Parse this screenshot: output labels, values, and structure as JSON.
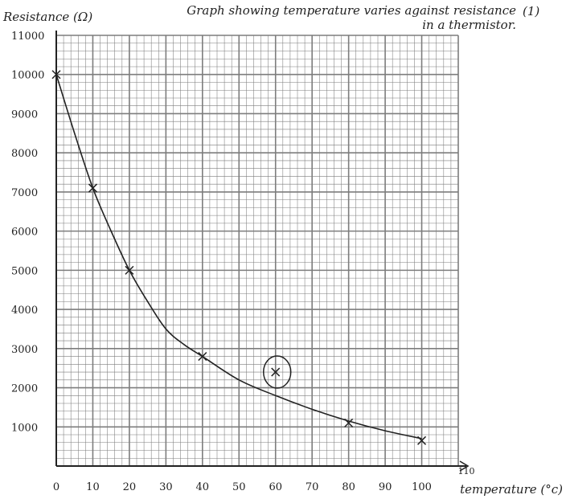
{
  "chart_data": {
    "type": "scatter",
    "title": "Graph showing temperature varies against resistance in a thermistor.",
    "title_note": "(1)",
    "xlabel": "temperature (°c)",
    "ylabel": "Resistance (Ω)",
    "x_ticks": [
      "0",
      "10",
      "20",
      "30",
      "40",
      "50",
      "60",
      "70",
      "80",
      "90",
      "100",
      "110"
    ],
    "y_ticks": [
      "1000",
      "2000",
      "3000",
      "4000",
      "5000",
      "6000",
      "7000",
      "8000",
      "9000",
      "10000",
      "11000"
    ],
    "xlim": [
      0,
      110
    ],
    "ylim": [
      0,
      11000
    ],
    "grid": true,
    "points": [
      {
        "x": 0,
        "y": 10000
      },
      {
        "x": 10,
        "y": 7100
      },
      {
        "x": 20,
        "y": 5000
      },
      {
        "x": 40,
        "y": 2800
      },
      {
        "x": 60,
        "y": 2400,
        "circled": true
      },
      {
        "x": 80,
        "y": 1100
      },
      {
        "x": 100,
        "y": 650
      }
    ],
    "curve": [
      [
        0,
        10000
      ],
      [
        5,
        8500
      ],
      [
        10,
        7100
      ],
      [
        15,
        6000
      ],
      [
        20,
        5000
      ],
      [
        25,
        4200
      ],
      [
        30,
        3500
      ],
      [
        35,
        3100
      ],
      [
        40,
        2800
      ],
      [
        50,
        2200
      ],
      [
        60,
        1800
      ],
      [
        70,
        1450
      ],
      [
        80,
        1150
      ],
      [
        90,
        900
      ],
      [
        100,
        700
      ]
    ],
    "colors": {
      "grid": "#7d7d7d",
      "ink": "#222222",
      "paper": "#ffffff"
    }
  }
}
